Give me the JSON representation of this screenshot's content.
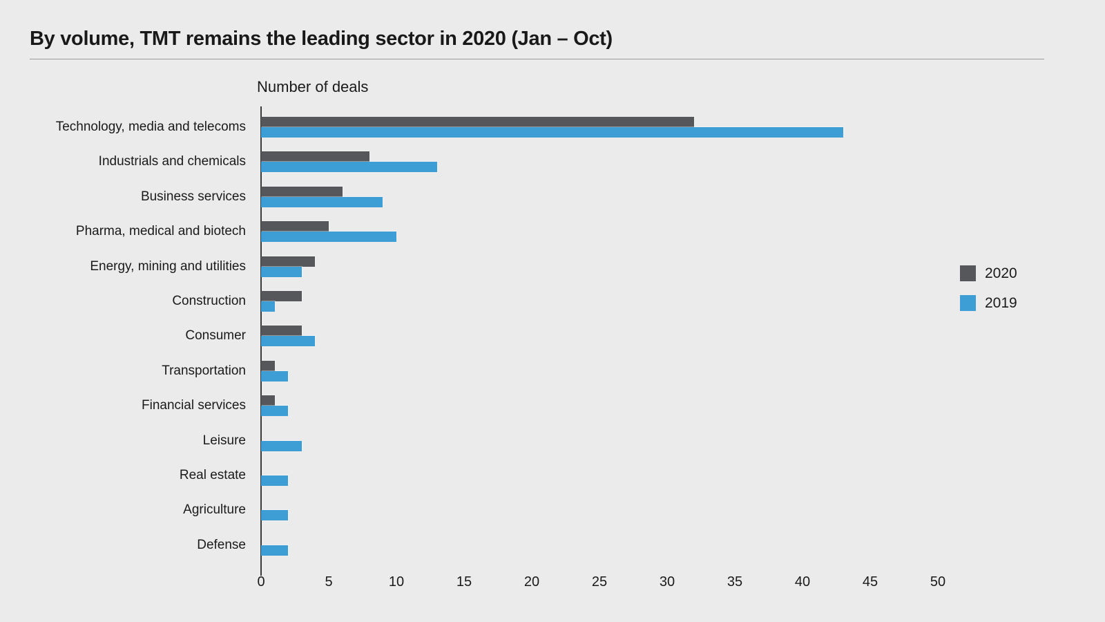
{
  "title": "By volume, TMT remains the leading sector in 2020 (Jan – Oct)",
  "chart_data": {
    "type": "bar",
    "orientation": "horizontal",
    "title": "By volume, TMT remains the leading sector in 2020 (Jan – Oct)",
    "xlabel": "Number of deals",
    "axis_label": "Number of deals",
    "xlim": [
      0,
      50
    ],
    "ticks": [
      0,
      5,
      10,
      15,
      20,
      25,
      30,
      35,
      40,
      45,
      50
    ],
    "grid": false,
    "legend_position": "right",
    "categories": [
      "Technology, media and telecoms",
      "Industrials and chemicals",
      "Business services",
      "Pharma, medical and biotech",
      "Energy, mining and utilities",
      "Construction",
      "Consumer",
      "Transportation",
      "Financial services",
      "Leisure",
      "Real estate",
      "Agriculture",
      "Defense"
    ],
    "series": [
      {
        "name": "2020",
        "color": "#56575B",
        "values": [
          32,
          8,
          6,
          5,
          4,
          3,
          3,
          1,
          1,
          0,
          0,
          0,
          0
        ]
      },
      {
        "name": "2019",
        "color": "#3D9ED5",
        "values": [
          43,
          13,
          9,
          10,
          3,
          1,
          4,
          2,
          2,
          3,
          2,
          2,
          2
        ]
      }
    ]
  },
  "colors": {
    "background": "#EBEBEB",
    "title_text": "#191919",
    "rule": "#9B9B9B",
    "axis_line": "#3A3A3A",
    "label_text": "#1A1A1A"
  }
}
